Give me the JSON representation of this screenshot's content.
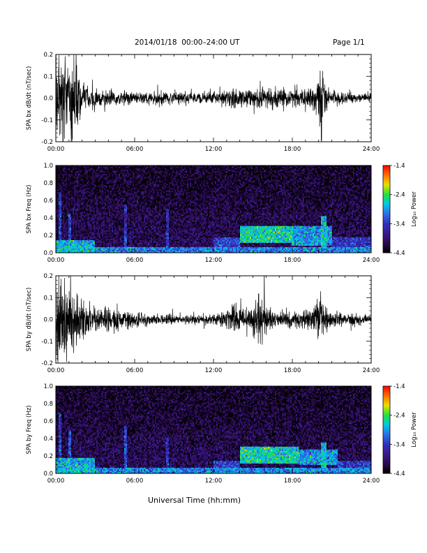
{
  "header": {
    "title": "2014/01/18  00:00–24:00 UT",
    "page": "Page 1/1"
  },
  "footer": {
    "x_caption": "Universal Time (hh:mm)"
  },
  "colors": {
    "trace": "#000000",
    "spectrogram_palette": [
      "#000000",
      "#2a0a50",
      "#3a1a8a",
      "#3030c0",
      "#2f6fe6",
      "#00c8e8",
      "#20e040",
      "#e8e000",
      "#ff7000",
      "#ff0000"
    ]
  },
  "chart_data": [
    {
      "type": "line",
      "ylabel": "SPA bx dB/dt (nT/sec)",
      "xlabel": "",
      "x_tick_labels": [
        "00:00",
        "06:00",
        "12:00",
        "18:00",
        "24:00"
      ],
      "xlim": [
        0,
        24
      ],
      "ylim": [
        -0.2,
        0.2
      ],
      "y_tick_labels": [
        "0.2",
        "0.1",
        "0.0",
        "-0.1",
        "-0.2"
      ],
      "y_ticks": [
        0.2,
        0.1,
        0.0,
        -0.1,
        -0.2
      ],
      "envelope": [
        {
          "x": 0.0,
          "y": 0.2
        },
        {
          "x": 0.5,
          "y": 0.2
        },
        {
          "x": 1.0,
          "y": 0.14
        },
        {
          "x": 1.5,
          "y": 0.2
        },
        {
          "x": 2.0,
          "y": 0.06
        },
        {
          "x": 3.0,
          "y": 0.05
        },
        {
          "x": 4.0,
          "y": 0.04
        },
        {
          "x": 5.0,
          "y": 0.03
        },
        {
          "x": 6.0,
          "y": 0.03
        },
        {
          "x": 7.0,
          "y": 0.025
        },
        {
          "x": 8.0,
          "y": 0.03
        },
        {
          "x": 9.0,
          "y": 0.025
        },
        {
          "x": 10.0,
          "y": 0.03
        },
        {
          "x": 11.0,
          "y": 0.025
        },
        {
          "x": 12.0,
          "y": 0.03
        },
        {
          "x": 13.0,
          "y": 0.035
        },
        {
          "x": 13.5,
          "y": 0.045
        },
        {
          "x": 14.0,
          "y": 0.035
        },
        {
          "x": 15.0,
          "y": 0.04
        },
        {
          "x": 15.6,
          "y": 0.055
        },
        {
          "x": 16.0,
          "y": 0.045
        },
        {
          "x": 17.0,
          "y": 0.04
        },
        {
          "x": 18.0,
          "y": 0.035
        },
        {
          "x": 19.0,
          "y": 0.035
        },
        {
          "x": 19.5,
          "y": 0.04
        },
        {
          "x": 20.1,
          "y": 0.14
        },
        {
          "x": 20.3,
          "y": 0.2
        },
        {
          "x": 20.6,
          "y": 0.05
        },
        {
          "x": 21.0,
          "y": 0.03
        },
        {
          "x": 22.0,
          "y": 0.025
        },
        {
          "x": 23.0,
          "y": 0.02
        },
        {
          "x": 24.0,
          "y": 0.02
        }
      ]
    },
    {
      "type": "heatmap",
      "ylabel": "SPA bx Freq (Hz)",
      "xlabel": "",
      "x_tick_labels": [
        "00:00",
        "06:00",
        "12:00",
        "18:00",
        "24:00"
      ],
      "xlim": [
        0,
        24
      ],
      "ylim": [
        0.0,
        1.0
      ],
      "y_tick_labels": [
        "1.0",
        "0.8",
        "0.6",
        "0.4",
        "0.2",
        "0.0"
      ],
      "y_ticks": [
        1.0,
        0.8,
        0.6,
        0.4,
        0.2,
        0.0
      ],
      "colorbar": {
        "label": "Log₁₀ Power",
        "range": [
          -4.4,
          -1.4
        ],
        "tick_labels": [
          "-1.4",
          "-2.4",
          "-3.4",
          "-4.4"
        ],
        "ticks": [
          -1.4,
          -2.4,
          -3.4,
          -4.4
        ]
      },
      "background_level": -4.0,
      "features": [
        {
          "x_range": [
            0.0,
            24.0
          ],
          "f_range": [
            0.0,
            0.06
          ],
          "level": -3.0
        },
        {
          "x_range": [
            0.0,
            3.0
          ],
          "f_range": [
            0.0,
            0.15
          ],
          "level": -2.8
        },
        {
          "x_range": [
            0.2,
            0.4
          ],
          "f_range": [
            0.0,
            0.7
          ],
          "level": -3.3
        },
        {
          "x_range": [
            1.0,
            1.2
          ],
          "f_range": [
            0.0,
            0.45
          ],
          "level": -3.3
        },
        {
          "x_range": [
            5.2,
            5.4
          ],
          "f_range": [
            0.0,
            0.55
          ],
          "level": -3.4
        },
        {
          "x_range": [
            8.4,
            8.6
          ],
          "f_range": [
            0.0,
            0.5
          ],
          "level": -3.4
        },
        {
          "x_range": [
            12.0,
            14.0
          ],
          "f_range": [
            0.05,
            0.18
          ],
          "level": -3.3
        },
        {
          "x_range": [
            14.0,
            18.0
          ],
          "f_range": [
            0.12,
            0.3
          ],
          "level": -2.6
        },
        {
          "x_range": [
            18.0,
            21.0
          ],
          "f_range": [
            0.08,
            0.3
          ],
          "level": -2.9
        },
        {
          "x_range": [
            20.2,
            20.6
          ],
          "f_range": [
            0.05,
            0.42
          ],
          "level": -2.7
        },
        {
          "x_range": [
            21.0,
            24.0
          ],
          "f_range": [
            0.05,
            0.18
          ],
          "level": -3.4
        }
      ]
    },
    {
      "type": "line",
      "ylabel": "SPA by dB/dt (nT/sec)",
      "xlabel": "",
      "x_tick_labels": [
        "00:00",
        "06:00",
        "12:00",
        "18:00",
        "24:00"
      ],
      "xlim": [
        0,
        24
      ],
      "ylim": [
        -0.2,
        0.2
      ],
      "y_tick_labels": [
        "0.2",
        "0.1",
        "0.0",
        "-0.1",
        "-0.2"
      ],
      "y_ticks": [
        0.2,
        0.1,
        0.0,
        -0.1,
        -0.2
      ],
      "envelope": [
        {
          "x": 0.0,
          "y": 0.2
        },
        {
          "x": 0.5,
          "y": 0.2
        },
        {
          "x": 1.0,
          "y": 0.17
        },
        {
          "x": 1.5,
          "y": 0.1
        },
        {
          "x": 2.0,
          "y": 0.09
        },
        {
          "x": 3.0,
          "y": 0.06
        },
        {
          "x": 4.0,
          "y": 0.05
        },
        {
          "x": 5.0,
          "y": 0.04
        },
        {
          "x": 6.0,
          "y": 0.035
        },
        {
          "x": 7.0,
          "y": 0.025
        },
        {
          "x": 8.0,
          "y": 0.02
        },
        {
          "x": 9.0,
          "y": 0.02
        },
        {
          "x": 10.0,
          "y": 0.02
        },
        {
          "x": 11.0,
          "y": 0.02
        },
        {
          "x": 12.0,
          "y": 0.025
        },
        {
          "x": 13.0,
          "y": 0.04
        },
        {
          "x": 13.5,
          "y": 0.06
        },
        {
          "x": 14.0,
          "y": 0.04
        },
        {
          "x": 15.0,
          "y": 0.07
        },
        {
          "x": 15.6,
          "y": 0.13
        },
        {
          "x": 16.0,
          "y": 0.06
        },
        {
          "x": 17.0,
          "y": 0.035
        },
        {
          "x": 18.0,
          "y": 0.03
        },
        {
          "x": 19.0,
          "y": 0.04
        },
        {
          "x": 19.5,
          "y": 0.05
        },
        {
          "x": 20.1,
          "y": 0.12
        },
        {
          "x": 20.4,
          "y": 0.06
        },
        {
          "x": 21.0,
          "y": 0.035
        },
        {
          "x": 22.0,
          "y": 0.025
        },
        {
          "x": 23.0,
          "y": 0.025
        },
        {
          "x": 24.0,
          "y": 0.02
        }
      ]
    },
    {
      "type": "heatmap",
      "ylabel": "SPA by Freq (Hz)",
      "xlabel": "Universal Time (hh:mm)",
      "x_tick_labels": [
        "00:00",
        "06:00",
        "12:00",
        "18:00",
        "24:00"
      ],
      "xlim": [
        0,
        24
      ],
      "ylim": [
        0.0,
        1.0
      ],
      "y_tick_labels": [
        "1.0",
        "0.8",
        "0.6",
        "0.4",
        "0.2",
        "0.0"
      ],
      "y_ticks": [
        1.0,
        0.8,
        0.6,
        0.4,
        0.2,
        0.0
      ],
      "colorbar": {
        "label": "Log₁₀ Power",
        "range": [
          -4.4,
          -1.4
        ],
        "tick_labels": [
          "-1.4",
          "-2.4",
          "-3.4",
          "-4.4"
        ],
        "ticks": [
          -1.4,
          -2.4,
          -3.4,
          -4.4
        ]
      },
      "background_level": -4.0,
      "features": [
        {
          "x_range": [
            0.0,
            24.0
          ],
          "f_range": [
            0.0,
            0.06
          ],
          "level": -3.0
        },
        {
          "x_range": [
            0.0,
            3.0
          ],
          "f_range": [
            0.0,
            0.18
          ],
          "level": -2.8
        },
        {
          "x_range": [
            0.2,
            0.4
          ],
          "f_range": [
            0.0,
            0.7
          ],
          "level": -3.3
        },
        {
          "x_range": [
            1.0,
            1.2
          ],
          "f_range": [
            0.0,
            0.5
          ],
          "level": -3.2
        },
        {
          "x_range": [
            5.2,
            5.4
          ],
          "f_range": [
            0.0,
            0.55
          ],
          "level": -3.3
        },
        {
          "x_range": [
            8.4,
            8.6
          ],
          "f_range": [
            0.0,
            0.4
          ],
          "level": -3.4
        },
        {
          "x_range": [
            12.0,
            14.0
          ],
          "f_range": [
            0.05,
            0.15
          ],
          "level": -3.3
        },
        {
          "x_range": [
            14.0,
            18.5
          ],
          "f_range": [
            0.12,
            0.3
          ],
          "level": -2.6
        },
        {
          "x_range": [
            18.5,
            21.5
          ],
          "f_range": [
            0.1,
            0.28
          ],
          "level": -2.9
        },
        {
          "x_range": [
            20.2,
            20.6
          ],
          "f_range": [
            0.05,
            0.35
          ],
          "level": -2.8
        },
        {
          "x_range": [
            21.5,
            24.0
          ],
          "f_range": [
            0.05,
            0.15
          ],
          "level": -3.4
        }
      ]
    }
  ]
}
